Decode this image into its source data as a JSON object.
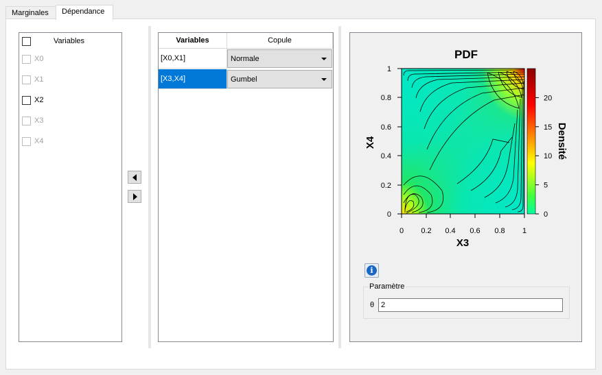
{
  "tabs": [
    {
      "label": "Marginales",
      "active": false
    },
    {
      "label": "Dépendance",
      "active": true
    }
  ],
  "variables_list": {
    "header_label": "Variables",
    "header_checked": false,
    "items": [
      {
        "label": "X0",
        "checked": false,
        "enabled": false
      },
      {
        "label": "X1",
        "checked": false,
        "enabled": false
      },
      {
        "label": "X2",
        "checked": false,
        "enabled": true
      },
      {
        "label": "X3",
        "checked": false,
        "enabled": false
      },
      {
        "label": "X4",
        "checked": false,
        "enabled": false
      }
    ]
  },
  "move_buttons": {
    "left_icon": "triangle-left-icon",
    "right_icon": "triangle-right-icon"
  },
  "copula_table": {
    "headers": [
      "Variables",
      "Copule"
    ],
    "rows": [
      {
        "variables": "[X0,X1]",
        "copula": "Normale",
        "selected": false
      },
      {
        "variables": "[X3,X4]",
        "copula": "Gumbel",
        "selected": true
      }
    ]
  },
  "chart_data": {
    "type": "heatmap",
    "title": "PDF",
    "xlabel": "X3",
    "ylabel": "X4",
    "colorbar_label": "Densité",
    "xlim": [
      0,
      1
    ],
    "ylim": [
      0,
      1
    ],
    "x_ticks": [
      "0",
      "0.2",
      "0.4",
      "0.6",
      "0.8",
      "1"
    ],
    "y_ticks": [
      "0",
      "0.2",
      "0.4",
      "0.6",
      "0.8",
      "1"
    ],
    "colorbar_range": [
      0,
      25
    ],
    "colorbar_ticks": [
      "0",
      "5",
      "10",
      "15",
      "20"
    ],
    "colormap": [
      "#00ffa0",
      "#40ff40",
      "#ffff00",
      "#ff8000",
      "#ff0000",
      "#8b0000"
    ],
    "contour_levels": true,
    "copula": "Gumbel",
    "theta": 2
  },
  "info_icon": "info-icon",
  "parameter_group": {
    "title": "Paramètre",
    "symbol": "θ",
    "value": "2"
  }
}
